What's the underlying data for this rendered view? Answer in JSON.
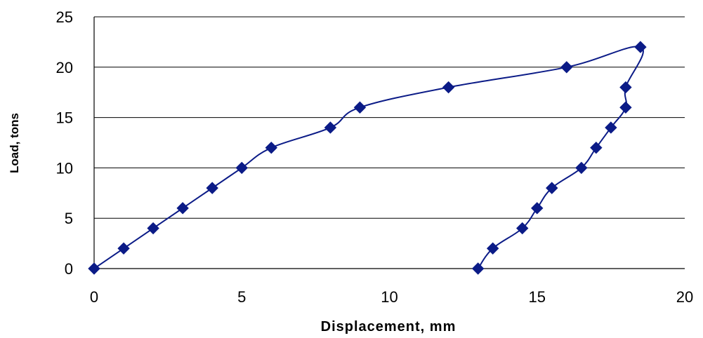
{
  "chart_data": {
    "type": "scatter",
    "title": "",
    "xlabel": "Displacement, mm",
    "ylabel": "Load, tons",
    "xlim": [
      0,
      20
    ],
    "ylim": [
      0,
      25
    ],
    "x_ticks": [
      "0",
      "5",
      "10",
      "15",
      "20"
    ],
    "y_ticks": [
      "0",
      "5",
      "10",
      "15",
      "20",
      "25"
    ],
    "grid": "horizontal",
    "legend": "none",
    "series_color": "#0b1b87",
    "series": [
      {
        "points": [
          {
            "x": 0,
            "y": 0
          },
          {
            "x": 1,
            "y": 2
          },
          {
            "x": 2,
            "y": 4
          },
          {
            "x": 3,
            "y": 6
          },
          {
            "x": 4,
            "y": 8
          },
          {
            "x": 5,
            "y": 10
          },
          {
            "x": 6,
            "y": 12
          },
          {
            "x": 8,
            "y": 14
          },
          {
            "x": 9,
            "y": 16
          },
          {
            "x": 12,
            "y": 18
          },
          {
            "x": 16,
            "y": 20
          },
          {
            "x": 18.5,
            "y": 22
          },
          {
            "x": 18,
            "y": 18
          },
          {
            "x": 18,
            "y": 16
          },
          {
            "x": 17.5,
            "y": 14
          },
          {
            "x": 17,
            "y": 12
          },
          {
            "x": 16.5,
            "y": 10
          },
          {
            "x": 15.5,
            "y": 8
          },
          {
            "x": 15,
            "y": 6
          },
          {
            "x": 14.5,
            "y": 4
          },
          {
            "x": 13.5,
            "y": 2
          },
          {
            "x": 13,
            "y": 0
          }
        ]
      }
    ]
  }
}
